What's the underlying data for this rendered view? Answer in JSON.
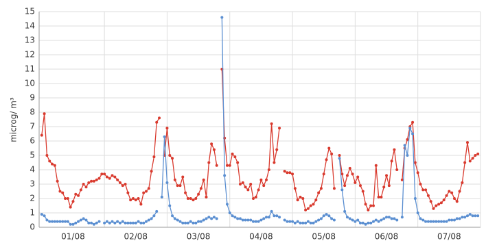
{
  "chart_data": {
    "type": "line",
    "y_label": "microg/ m³",
    "x": [
      0,
      1,
      2,
      3,
      4,
      5,
      6,
      7,
      8,
      9,
      10,
      11,
      12,
      13,
      14,
      15,
      16,
      17,
      18,
      19,
      20,
      21,
      22,
      23,
      24,
      25,
      26,
      27,
      28,
      29,
      30,
      31,
      32,
      33,
      34,
      35,
      36,
      37,
      38,
      39,
      40,
      41,
      42,
      43,
      44,
      45,
      46,
      47,
      48,
      49,
      50,
      51,
      52,
      53,
      54,
      55,
      56,
      57,
      58,
      59,
      60,
      61,
      62,
      63,
      64,
      65,
      66,
      67,
      68,
      69,
      70,
      71,
      72,
      73,
      74,
      75,
      76,
      77,
      78,
      79,
      80,
      81,
      82,
      83,
      84,
      85,
      86,
      87,
      88,
      89,
      90,
      91,
      92,
      93,
      94,
      95,
      96,
      97,
      98,
      99,
      100,
      101,
      102,
      103,
      104,
      105,
      106,
      107,
      108,
      109,
      110,
      111,
      112,
      113,
      114,
      115,
      116,
      117,
      118,
      119,
      120,
      121,
      122,
      123,
      124,
      125,
      126,
      127,
      128,
      129,
      130,
      131,
      132,
      133,
      134,
      135,
      136,
      137,
      138,
      139,
      140,
      141,
      142,
      143,
      144,
      145,
      146,
      147,
      148,
      149,
      150,
      151,
      152,
      153,
      154,
      155,
      156,
      157,
      158,
      159,
      160,
      161,
      162,
      163,
      164,
      165,
      166,
      167
    ],
    "series": [
      {
        "color": "#d93a2e",
        "values": [
          6.4,
          7.9,
          5.0,
          4.6,
          4.4,
          4.3,
          3.2,
          2.5,
          2.4,
          2.0,
          2.0,
          1.4,
          1.8,
          2.3,
          2.2,
          2.6,
          3.0,
          2.8,
          3.1,
          3.2,
          3.2,
          3.3,
          3.4,
          3.7,
          3.7,
          3.5,
          3.4,
          3.6,
          3.5,
          3.3,
          3.1,
          2.9,
          3.0,
          2.4,
          1.9,
          2.0,
          1.9,
          2.0,
          1.6,
          2.4,
          2.5,
          2.7,
          3.9,
          4.9,
          7.3,
          7.6,
          null,
          5.0,
          6.9,
          5.0,
          4.8,
          3.3,
          2.9,
          2.9,
          3.5,
          2.4,
          2.0,
          2.0,
          1.9,
          2.0,
          2.3,
          2.7,
          3.3,
          2.1,
          4.5,
          5.8,
          5.4,
          4.3,
          null,
          11.0,
          6.2,
          4.3,
          4.3,
          5.1,
          4.9,
          4.5,
          3.0,
          3.1,
          2.8,
          2.6,
          3.0,
          2.0,
          2.1,
          2.6,
          3.3,
          2.9,
          3.3,
          4.0,
          7.2,
          4.5,
          5.4,
          6.9,
          null,
          3.9,
          3.8,
          3.8,
          3.7,
          2.7,
          1.9,
          2.1,
          2.0,
          1.2,
          1.3,
          1.5,
          1.6,
          1.9,
          2.4,
          2.7,
          3.7,
          4.7,
          5.5,
          5.1,
          2.7,
          null,
          5.0,
          3.7,
          2.9,
          3.6,
          4.1,
          3.7,
          3.1,
          3.5,
          2.9,
          2.5,
          1.6,
          1.2,
          1.5,
          1.5,
          4.3,
          2.1,
          2.1,
          2.8,
          3.6,
          2.9,
          4.6,
          5.4,
          4.0,
          null,
          3.3,
          5.5,
          6.1,
          7.0,
          7.3,
          4.5,
          3.8,
          3.0,
          2.6,
          2.6,
          2.2,
          1.8,
          1.3,
          1.5,
          1.6,
          1.7,
          1.9,
          2.2,
          2.5,
          2.4,
          2.0,
          1.8,
          2.5,
          3.1,
          4.5,
          5.9,
          4.6,
          4.8,
          5.0,
          5.1
        ]
      },
      {
        "color": "#5b8fd1",
        "values": [
          0.9,
          0.8,
          0.5,
          0.4,
          0.4,
          0.4,
          0.4,
          0.4,
          0.4,
          0.4,
          0.4,
          0.2,
          0.2,
          0.3,
          0.4,
          0.5,
          0.6,
          0.5,
          0.3,
          0.3,
          0.2,
          0.3,
          0.4,
          null,
          0.3,
          0.4,
          0.3,
          0.4,
          0.3,
          0.4,
          0.3,
          0.4,
          0.3,
          0.3,
          0.3,
          0.3,
          0.3,
          0.4,
          0.3,
          0.3,
          0.4,
          0.5,
          0.6,
          0.8,
          1.1,
          null,
          2.1,
          6.3,
          3.1,
          1.5,
          0.8,
          0.6,
          0.5,
          0.4,
          0.3,
          0.3,
          0.3,
          0.4,
          0.3,
          0.3,
          0.4,
          0.4,
          0.5,
          0.6,
          0.7,
          0.6,
          0.7,
          0.6,
          null,
          14.6,
          3.6,
          1.6,
          1.0,
          0.8,
          0.7,
          0.6,
          0.6,
          0.5,
          0.5,
          0.5,
          0.5,
          0.4,
          0.4,
          0.4,
          0.5,
          0.6,
          0.7,
          0.7,
          1.1,
          0.8,
          0.8,
          0.7,
          null,
          0.5,
          0.4,
          0.4,
          0.4,
          0.3,
          0.4,
          0.3,
          0.3,
          0.3,
          0.4,
          0.3,
          0.3,
          0.4,
          0.5,
          0.6,
          0.8,
          0.9,
          0.8,
          0.6,
          0.5,
          null,
          4.8,
          2.6,
          1.1,
          0.7,
          0.6,
          0.5,
          0.4,
          0.5,
          0.3,
          0.3,
          0.2,
          0.3,
          0.3,
          0.4,
          0.5,
          0.4,
          0.5,
          0.6,
          0.7,
          0.7,
          0.6,
          0.6,
          0.5,
          null,
          0.7,
          5.7,
          5.0,
          6.9,
          6.5,
          2.0,
          1.0,
          0.6,
          0.5,
          0.4,
          0.4,
          0.4,
          0.4,
          0.4,
          0.4,
          0.4,
          0.4,
          0.4,
          0.5,
          0.5,
          0.5,
          0.6,
          0.6,
          0.7,
          0.7,
          0.8,
          0.9,
          0.8,
          0.8,
          0.8
        ]
      }
    ],
    "xlim": [
      -1,
      168
    ],
    "xticks": [
      {
        "value": 12,
        "label": "01/08"
      },
      {
        "value": 36,
        "label": "02/08"
      },
      {
        "value": 60,
        "label": "03/08"
      },
      {
        "value": 84,
        "label": "04/08"
      },
      {
        "value": 108,
        "label": "05/08"
      },
      {
        "value": 132,
        "label": "06/08"
      },
      {
        "value": 156,
        "label": "07/08"
      }
    ],
    "xgrid": [
      24,
      48,
      72,
      96,
      120,
      144
    ],
    "ylim": [
      0,
      15
    ],
    "yticks": [
      0,
      1,
      2,
      3,
      4,
      5,
      6,
      7,
      8,
      9,
      10,
      11,
      12,
      13,
      14,
      15
    ],
    "grid": true
  }
}
